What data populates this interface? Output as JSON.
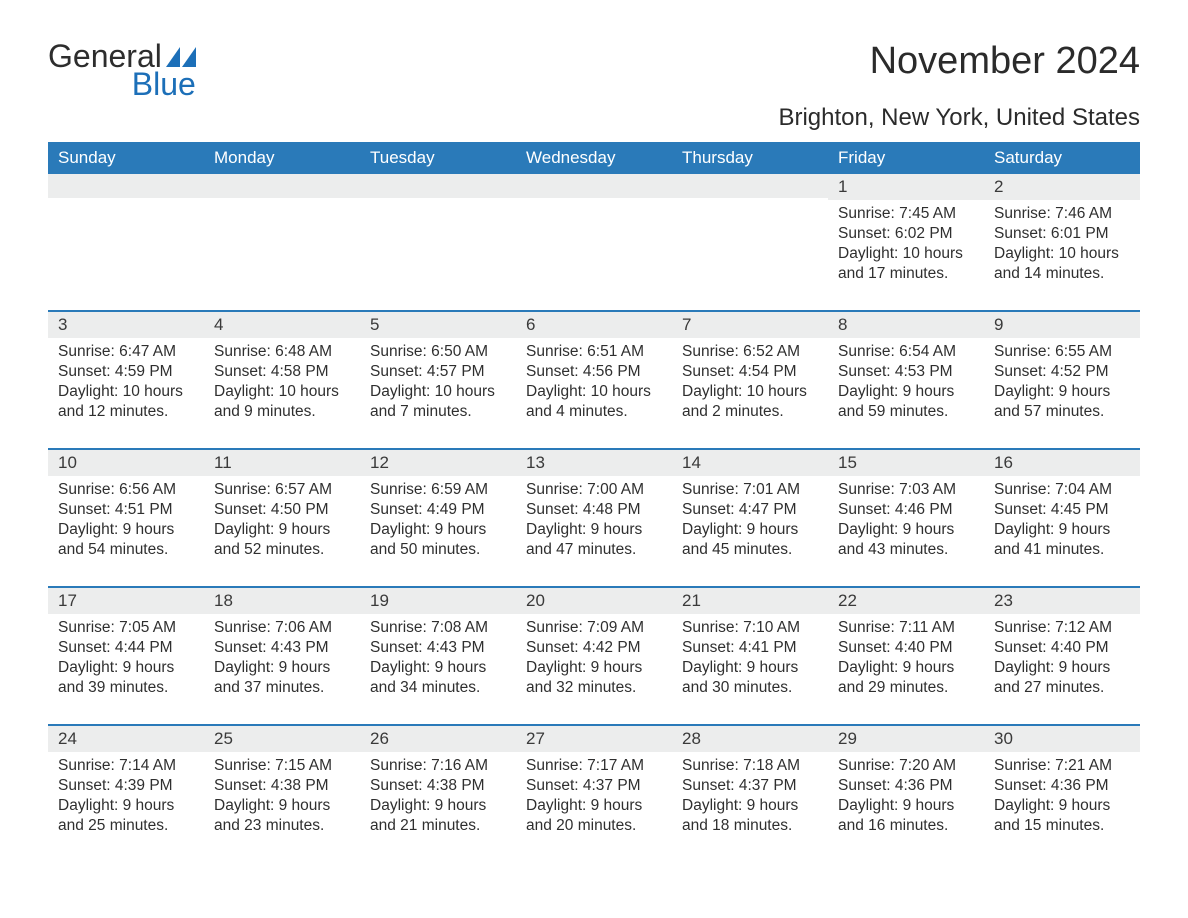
{
  "logo": {
    "general": "General",
    "blue": "Blue"
  },
  "title": "November 2024",
  "subtitle": "Brighton, New York, United States",
  "colors": {
    "header_bg": "#2a7ab9",
    "header_text": "#ffffff",
    "daynum_bg": "#eceded",
    "week_border": "#2a7ab9",
    "text": "#2b2b2b",
    "logo_blue": "#1c6fb8",
    "background": "#ffffff"
  },
  "dayNames": [
    "Sunday",
    "Monday",
    "Tuesday",
    "Wednesday",
    "Thursday",
    "Friday",
    "Saturday"
  ],
  "weeks": [
    [
      {
        "empty": true
      },
      {
        "empty": true
      },
      {
        "empty": true
      },
      {
        "empty": true
      },
      {
        "empty": true
      },
      {
        "day": "1",
        "sunrise": "Sunrise: 7:45 AM",
        "sunset": "Sunset: 6:02 PM",
        "dl1": "Daylight: 10 hours",
        "dl2": "and 17 minutes."
      },
      {
        "day": "2",
        "sunrise": "Sunrise: 7:46 AM",
        "sunset": "Sunset: 6:01 PM",
        "dl1": "Daylight: 10 hours",
        "dl2": "and 14 minutes."
      }
    ],
    [
      {
        "day": "3",
        "sunrise": "Sunrise: 6:47 AM",
        "sunset": "Sunset: 4:59 PM",
        "dl1": "Daylight: 10 hours",
        "dl2": "and 12 minutes."
      },
      {
        "day": "4",
        "sunrise": "Sunrise: 6:48 AM",
        "sunset": "Sunset: 4:58 PM",
        "dl1": "Daylight: 10 hours",
        "dl2": "and 9 minutes."
      },
      {
        "day": "5",
        "sunrise": "Sunrise: 6:50 AM",
        "sunset": "Sunset: 4:57 PM",
        "dl1": "Daylight: 10 hours",
        "dl2": "and 7 minutes."
      },
      {
        "day": "6",
        "sunrise": "Sunrise: 6:51 AM",
        "sunset": "Sunset: 4:56 PM",
        "dl1": "Daylight: 10 hours",
        "dl2": "and 4 minutes."
      },
      {
        "day": "7",
        "sunrise": "Sunrise: 6:52 AM",
        "sunset": "Sunset: 4:54 PM",
        "dl1": "Daylight: 10 hours",
        "dl2": "and 2 minutes."
      },
      {
        "day": "8",
        "sunrise": "Sunrise: 6:54 AM",
        "sunset": "Sunset: 4:53 PM",
        "dl1": "Daylight: 9 hours",
        "dl2": "and 59 minutes."
      },
      {
        "day": "9",
        "sunrise": "Sunrise: 6:55 AM",
        "sunset": "Sunset: 4:52 PM",
        "dl1": "Daylight: 9 hours",
        "dl2": "and 57 minutes."
      }
    ],
    [
      {
        "day": "10",
        "sunrise": "Sunrise: 6:56 AM",
        "sunset": "Sunset: 4:51 PM",
        "dl1": "Daylight: 9 hours",
        "dl2": "and 54 minutes."
      },
      {
        "day": "11",
        "sunrise": "Sunrise: 6:57 AM",
        "sunset": "Sunset: 4:50 PM",
        "dl1": "Daylight: 9 hours",
        "dl2": "and 52 minutes."
      },
      {
        "day": "12",
        "sunrise": "Sunrise: 6:59 AM",
        "sunset": "Sunset: 4:49 PM",
        "dl1": "Daylight: 9 hours",
        "dl2": "and 50 minutes."
      },
      {
        "day": "13",
        "sunrise": "Sunrise: 7:00 AM",
        "sunset": "Sunset: 4:48 PM",
        "dl1": "Daylight: 9 hours",
        "dl2": "and 47 minutes."
      },
      {
        "day": "14",
        "sunrise": "Sunrise: 7:01 AM",
        "sunset": "Sunset: 4:47 PM",
        "dl1": "Daylight: 9 hours",
        "dl2": "and 45 minutes."
      },
      {
        "day": "15",
        "sunrise": "Sunrise: 7:03 AM",
        "sunset": "Sunset: 4:46 PM",
        "dl1": "Daylight: 9 hours",
        "dl2": "and 43 minutes."
      },
      {
        "day": "16",
        "sunrise": "Sunrise: 7:04 AM",
        "sunset": "Sunset: 4:45 PM",
        "dl1": "Daylight: 9 hours",
        "dl2": "and 41 minutes."
      }
    ],
    [
      {
        "day": "17",
        "sunrise": "Sunrise: 7:05 AM",
        "sunset": "Sunset: 4:44 PM",
        "dl1": "Daylight: 9 hours",
        "dl2": "and 39 minutes."
      },
      {
        "day": "18",
        "sunrise": "Sunrise: 7:06 AM",
        "sunset": "Sunset: 4:43 PM",
        "dl1": "Daylight: 9 hours",
        "dl2": "and 37 minutes."
      },
      {
        "day": "19",
        "sunrise": "Sunrise: 7:08 AM",
        "sunset": "Sunset: 4:43 PM",
        "dl1": "Daylight: 9 hours",
        "dl2": "and 34 minutes."
      },
      {
        "day": "20",
        "sunrise": "Sunrise: 7:09 AM",
        "sunset": "Sunset: 4:42 PM",
        "dl1": "Daylight: 9 hours",
        "dl2": "and 32 minutes."
      },
      {
        "day": "21",
        "sunrise": "Sunrise: 7:10 AM",
        "sunset": "Sunset: 4:41 PM",
        "dl1": "Daylight: 9 hours",
        "dl2": "and 30 minutes."
      },
      {
        "day": "22",
        "sunrise": "Sunrise: 7:11 AM",
        "sunset": "Sunset: 4:40 PM",
        "dl1": "Daylight: 9 hours",
        "dl2": "and 29 minutes."
      },
      {
        "day": "23",
        "sunrise": "Sunrise: 7:12 AM",
        "sunset": "Sunset: 4:40 PM",
        "dl1": "Daylight: 9 hours",
        "dl2": "and 27 minutes."
      }
    ],
    [
      {
        "day": "24",
        "sunrise": "Sunrise: 7:14 AM",
        "sunset": "Sunset: 4:39 PM",
        "dl1": "Daylight: 9 hours",
        "dl2": "and 25 minutes."
      },
      {
        "day": "25",
        "sunrise": "Sunrise: 7:15 AM",
        "sunset": "Sunset: 4:38 PM",
        "dl1": "Daylight: 9 hours",
        "dl2": "and 23 minutes."
      },
      {
        "day": "26",
        "sunrise": "Sunrise: 7:16 AM",
        "sunset": "Sunset: 4:38 PM",
        "dl1": "Daylight: 9 hours",
        "dl2": "and 21 minutes."
      },
      {
        "day": "27",
        "sunrise": "Sunrise: 7:17 AM",
        "sunset": "Sunset: 4:37 PM",
        "dl1": "Daylight: 9 hours",
        "dl2": "and 20 minutes."
      },
      {
        "day": "28",
        "sunrise": "Sunrise: 7:18 AM",
        "sunset": "Sunset: 4:37 PM",
        "dl1": "Daylight: 9 hours",
        "dl2": "and 18 minutes."
      },
      {
        "day": "29",
        "sunrise": "Sunrise: 7:20 AM",
        "sunset": "Sunset: 4:36 PM",
        "dl1": "Daylight: 9 hours",
        "dl2": "and 16 minutes."
      },
      {
        "day": "30",
        "sunrise": "Sunrise: 7:21 AM",
        "sunset": "Sunset: 4:36 PM",
        "dl1": "Daylight: 9 hours",
        "dl2": "and 15 minutes."
      }
    ]
  ]
}
